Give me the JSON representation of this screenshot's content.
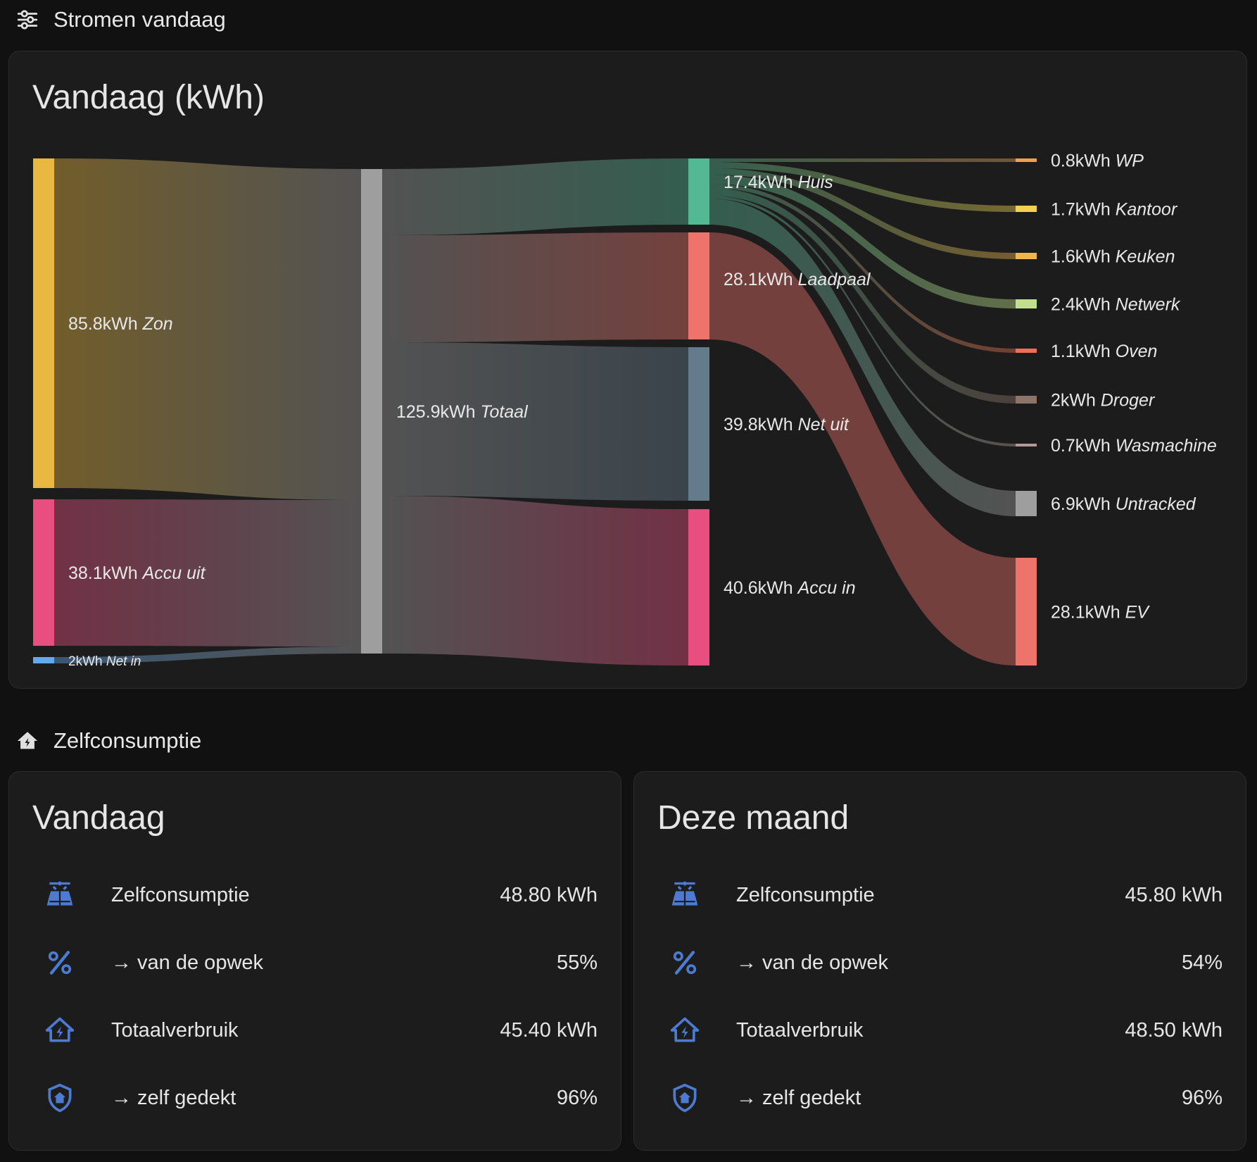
{
  "flow_section": {
    "title": "Stromen vandaag"
  },
  "sankey_card": {
    "title": "Vandaag (kWh)"
  },
  "sankey_nodes": [
    {
      "id": "zon",
      "value": "85.8kWh",
      "name": "Zon",
      "color": "#e9b840"
    },
    {
      "id": "accu_uit",
      "value": "38.1kWh",
      "name": "Accu uit",
      "color": "#e84e80"
    },
    {
      "id": "net_in",
      "value": "2kWh",
      "name": "Net in",
      "color": "#64a8ee"
    },
    {
      "id": "totaal",
      "value": "125.9kWh",
      "name": "Totaal",
      "color": "#9e9e9e"
    },
    {
      "id": "huis",
      "value": "17.4kWh",
      "name": "Huis",
      "color": "#54b895"
    },
    {
      "id": "laadpaal",
      "value": "28.1kWh",
      "name": "Laadpaal",
      "color": "#ee736a"
    },
    {
      "id": "net_uit",
      "value": "39.8kWh",
      "name": "Net uit",
      "color": "#647b8c"
    },
    {
      "id": "accu_in",
      "value": "40.6kWh",
      "name": "Accu in",
      "color": "#e84e80"
    },
    {
      "id": "wp",
      "value": "0.8kWh",
      "name": "WP",
      "color": "#f0a050"
    },
    {
      "id": "kantoor",
      "value": "1.7kWh",
      "name": "Kantoor",
      "color": "#f1d24f"
    },
    {
      "id": "keuken",
      "value": "1.6kWh",
      "name": "Keuken",
      "color": "#f0b64a"
    },
    {
      "id": "netwerk",
      "value": "2.4kWh",
      "name": "Netwerk",
      "color": "#c2e089"
    },
    {
      "id": "oven",
      "value": "1.1kWh",
      "name": "Oven",
      "color": "#ee7050"
    },
    {
      "id": "droger",
      "value": "2kWh",
      "name": "Droger",
      "color": "#8e7368"
    },
    {
      "id": "wasmachine",
      "value": "0.7kWh",
      "name": "Wasmachine",
      "color": "#b29896"
    },
    {
      "id": "untracked",
      "value": "6.9kWh",
      "name": "Untracked",
      "color": "#9e9e9e"
    },
    {
      "id": "ev",
      "value": "28.1kWh",
      "name": "EV",
      "color": "#ee736a"
    }
  ],
  "self_section": {
    "title": "Zelfconsumptie"
  },
  "stat_cards": [
    {
      "title": "Vandaag",
      "rows": [
        {
          "icon": "solar-panel-icon",
          "label": "Zelfconsumptie",
          "value": "48.80 kWh"
        },
        {
          "icon": "percent-icon",
          "label": "→ van de opwek",
          "value": "55%"
        },
        {
          "icon": "home-lightning-icon",
          "label": "Totaalverbruik",
          "value": "45.40 kWh"
        },
        {
          "icon": "shield-home-icon",
          "label": "→ zelf gedekt",
          "value": "96%"
        }
      ]
    },
    {
      "title": "Deze maand",
      "rows": [
        {
          "icon": "solar-panel-icon",
          "label": "Zelfconsumptie",
          "value": "45.80 kWh"
        },
        {
          "icon": "percent-icon",
          "label": "→ van de opwek",
          "value": "54%"
        },
        {
          "icon": "home-lightning-icon",
          "label": "Totaalverbruik",
          "value": "48.50 kWh"
        },
        {
          "icon": "shield-home-icon",
          "label": "→ zelf gedekt",
          "value": "96%"
        }
      ]
    }
  ],
  "colors": {
    "icon": "#4c7bd0",
    "card_bg": "#1c1c1c",
    "page_bg": "#111111"
  }
}
